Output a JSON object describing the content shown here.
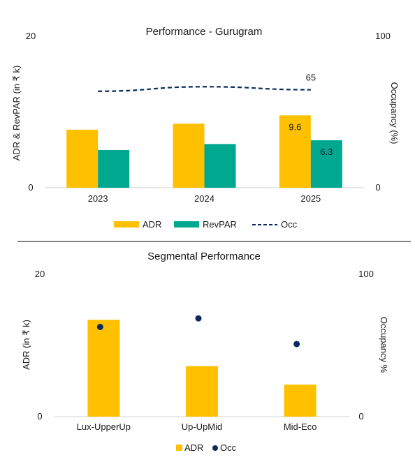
{
  "chart_data": [
    {
      "type": "bar",
      "title": "Performance - Gurugram",
      "ylabel": "ADR & RevPAR (in ₹ k)",
      "y2label": "Occupancy (%)",
      "ylim": [
        0,
        20
      ],
      "y2lim": [
        0,
        100
      ],
      "ylim_labels": [
        "0",
        "20"
      ],
      "y2lim_labels": [
        "0",
        "100"
      ],
      "categories": [
        "2023",
        "2024",
        "2025"
      ],
      "series": [
        {
          "name": "ADR",
          "type": "bar",
          "axis": "left",
          "color": "#FFC000",
          "values": [
            7.7,
            8.5,
            9.6
          ],
          "data_labels": [
            "",
            "",
            "9.6"
          ]
        },
        {
          "name": "RevPAR",
          "type": "bar",
          "axis": "left",
          "color": "#00A88F",
          "values": [
            5.0,
            5.8,
            6.3
          ],
          "data_labels": [
            "",
            "",
            "6.3"
          ]
        },
        {
          "name": "Occ",
          "type": "line",
          "axis": "right",
          "style": "dashed",
          "color": "#0B2A5B",
          "values": [
            64,
            67,
            65
          ],
          "data_labels": [
            "",
            "",
            "65"
          ]
        }
      ],
      "grid": false,
      "legend": "bottom"
    },
    {
      "type": "bar",
      "title": "Segmental Performance",
      "ylabel": "ADR (in ₹ k)",
      "y2label": "Occupancy %",
      "ylim": [
        0,
        20
      ],
      "y2lim": [
        0,
        100
      ],
      "ylim_labels": [
        "0",
        "20"
      ],
      "y2lim_labels": [
        "0",
        "100"
      ],
      "categories": [
        "Lux-UpperUp",
        "Up-UpMid",
        "Mid-Eco"
      ],
      "series": [
        {
          "name": "ADR",
          "type": "bar",
          "axis": "left",
          "color": "#FFC000",
          "values": [
            13.6,
            7.1,
            4.5
          ]
        },
        {
          "name": "Occ",
          "type": "scatter",
          "axis": "right",
          "color": "#0B2A5B",
          "values": [
            63,
            69,
            51
          ]
        }
      ],
      "grid": false,
      "legend": "bottom"
    }
  ]
}
